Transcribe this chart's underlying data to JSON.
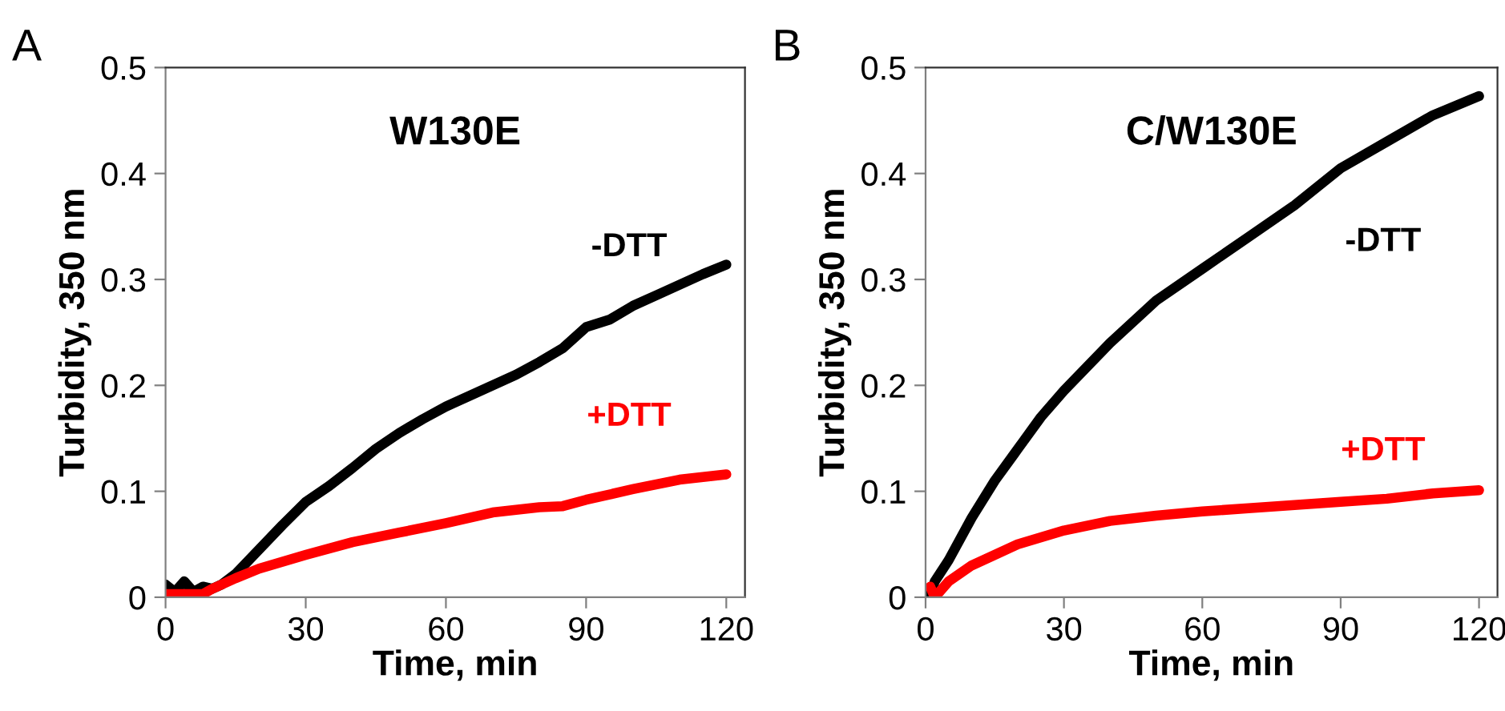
{
  "chart_data": [
    {
      "type": "line",
      "title": "W130E",
      "xlabel": "Time, min",
      "ylabel": "Turbidity, 350 nm",
      "annotations": [
        "A"
      ],
      "xlim": [
        0,
        124
      ],
      "xticks": [
        0,
        30,
        60,
        90,
        120
      ],
      "ylim": [
        0,
        0.5
      ],
      "yticks": [
        0,
        0.1,
        0.2,
        0.3,
        0.4,
        0.5
      ],
      "grid": false,
      "legend": false,
      "series": [
        {
          "name": "-DTT",
          "color": "#000000",
          "x": [
            0,
            2,
            4,
            6,
            8,
            10,
            12,
            15,
            20,
            25,
            30,
            35,
            40,
            45,
            50,
            55,
            60,
            65,
            70,
            75,
            80,
            85,
            90,
            95,
            100,
            105,
            110,
            115,
            120
          ],
          "values": [
            0.012,
            0.005,
            0.015,
            0.005,
            0.01,
            0.008,
            0.012,
            0.022,
            0.045,
            0.068,
            0.09,
            0.105,
            0.122,
            0.14,
            0.155,
            0.168,
            0.18,
            0.19,
            0.2,
            0.21,
            0.222,
            0.235,
            0.255,
            0.262,
            0.275,
            0.285,
            0.295,
            0.305,
            0.314
          ]
        },
        {
          "name": "+DTT",
          "color": "#ff0000",
          "x": [
            0,
            4,
            8,
            10,
            15,
            20,
            30,
            40,
            50,
            60,
            70,
            80,
            85,
            90,
            100,
            110,
            120
          ],
          "values": [
            0.003,
            0.003,
            0.003,
            0.008,
            0.018,
            0.027,
            0.04,
            0.052,
            0.061,
            0.07,
            0.08,
            0.085,
            0.086,
            0.092,
            0.102,
            0.111,
            0.116
          ]
        }
      ]
    },
    {
      "type": "line",
      "title": "C/W130E",
      "xlabel": "Time, min",
      "ylabel": "Turbidity, 350 nm",
      "annotations": [
        "B"
      ],
      "xlim": [
        0,
        124
      ],
      "xticks": [
        0,
        30,
        60,
        90,
        120
      ],
      "ylim": [
        0,
        0.5
      ],
      "yticks": [
        0,
        0.1,
        0.2,
        0.3,
        0.4,
        0.5
      ],
      "grid": false,
      "legend": false,
      "series": [
        {
          "name": "-DTT",
          "color": "#000000",
          "x": [
            1,
            2,
            5,
            10,
            15,
            20,
            25,
            30,
            40,
            50,
            60,
            70,
            80,
            90,
            100,
            110,
            120
          ],
          "values": [
            0.003,
            0.015,
            0.035,
            0.075,
            0.11,
            0.14,
            0.17,
            0.195,
            0.24,
            0.28,
            0.31,
            0.34,
            0.37,
            0.405,
            0.43,
            0.455,
            0.473
          ]
        },
        {
          "name": "+DTT",
          "color": "#ff0000",
          "x": [
            1,
            2,
            3,
            5,
            10,
            15,
            20,
            30,
            40,
            50,
            60,
            70,
            80,
            90,
            100,
            110,
            120
          ],
          "values": [
            0.01,
            0.0,
            0.005,
            0.015,
            0.03,
            0.04,
            0.05,
            0.063,
            0.072,
            0.077,
            0.081,
            0.084,
            0.087,
            0.09,
            0.093,
            0.098,
            0.101
          ]
        }
      ]
    }
  ]
}
